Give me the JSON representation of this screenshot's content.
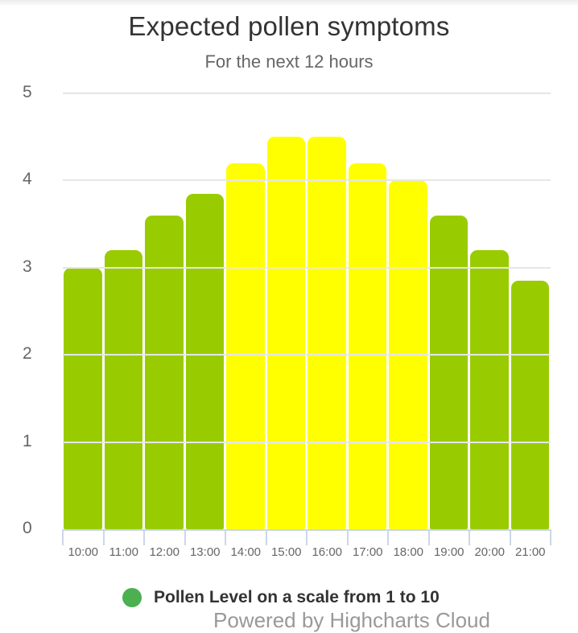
{
  "chart_data": {
    "type": "bar",
    "title": "Expected pollen symptoms",
    "subtitle": "For the next 12 hours",
    "xlabel": "",
    "ylabel": "",
    "ylim": [
      0,
      5
    ],
    "y_ticks": [
      "0",
      "1",
      "2",
      "3",
      "4",
      "5"
    ],
    "grid": true,
    "legend_position": "bottom",
    "categories": [
      "10:00",
      "11:00",
      "12:00",
      "13:00",
      "14:00",
      "15:00",
      "16:00",
      "17:00",
      "18:00",
      "19:00",
      "20:00",
      "21:00"
    ],
    "series": [
      {
        "name": "Pollen Level on a scale from 1 to 10",
        "legend_color": "#4caf50",
        "values": [
          3.0,
          3.2,
          3.6,
          3.85,
          4.2,
          4.5,
          4.5,
          4.2,
          4.0,
          3.6,
          3.2,
          2.85
        ],
        "bar_colors": [
          "#99cc00",
          "#99cc00",
          "#99cc00",
          "#99cc00",
          "#ffff00",
          "#ffff00",
          "#ffff00",
          "#ffff00",
          "#ffff00",
          "#99cc00",
          "#99cc00",
          "#99cc00"
        ]
      }
    ]
  },
  "credits": "Powered by Highcharts Cloud"
}
